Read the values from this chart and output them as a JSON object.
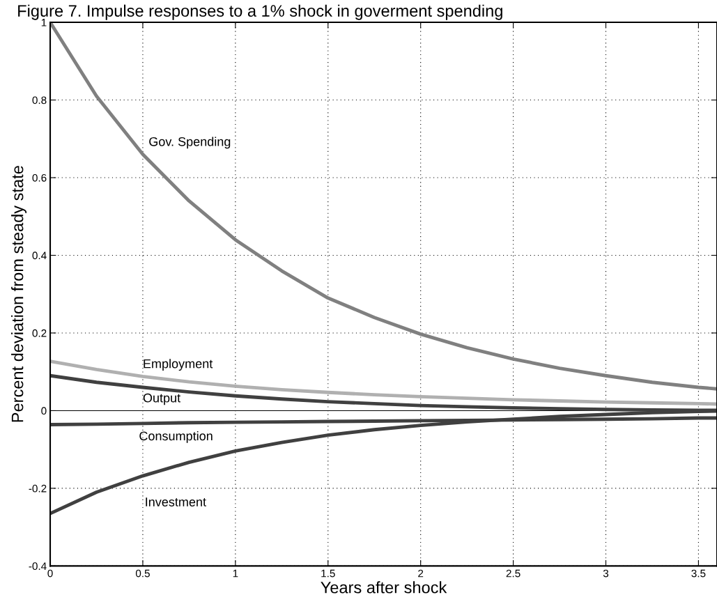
{
  "chart_data": {
    "type": "line",
    "title": "Figure 7. Impulse responses to a 1% shock in goverment spending",
    "xlabel": "Years after shock",
    "ylabel": "Percent deviation from steady state",
    "x": [
      0,
      0.25,
      0.5,
      0.75,
      1,
      1.25,
      1.5,
      1.75,
      2,
      2.25,
      2.5,
      2.75,
      3,
      3.25,
      3.5,
      3.6
    ],
    "series": [
      {
        "name": "Gov. Spending",
        "color": "#808080",
        "values": [
          1,
          0.81,
          0.66,
          0.54,
          0.44,
          0.36,
          0.29,
          0.24,
          0.197,
          0.162,
          0.133,
          0.109,
          0.09,
          0.073,
          0.06,
          0.056
        ]
      },
      {
        "name": "Employment",
        "color": "#b0b0b0",
        "values": [
          0.127,
          0.106,
          0.088,
          0.074,
          0.063,
          0.054,
          0.047,
          0.041,
          0.036,
          0.032,
          0.028,
          0.025,
          0.022,
          0.02,
          0.018,
          0.017
        ]
      },
      {
        "name": "Output",
        "color": "#404040",
        "values": [
          0.09,
          0.073,
          0.06,
          0.048,
          0.038,
          0.03,
          0.023,
          0.018,
          0.013,
          0.01,
          0.007,
          0.005,
          0.003,
          0.002,
          0.001,
          0.001
        ]
      },
      {
        "name": "Consumption",
        "color": "#404040",
        "values": [
          -0.036,
          -0.035,
          -0.033,
          -0.031,
          -0.03,
          -0.029,
          -0.028,
          -0.027,
          -0.026,
          -0.025,
          -0.024,
          -0.023,
          -0.022,
          -0.021,
          -0.019,
          -0.019
        ]
      },
      {
        "name": "Investment",
        "color": "#404040",
        "values": [
          -0.265,
          -0.21,
          -0.168,
          -0.133,
          -0.104,
          -0.082,
          -0.063,
          -0.049,
          -0.038,
          -0.029,
          -0.022,
          -0.015,
          -0.01,
          -0.005,
          -0.002,
          -0.001
        ]
      }
    ],
    "xlim": [
      0,
      3.6
    ],
    "xticks": [
      0,
      0.5,
      1,
      1.5,
      2,
      2.5,
      3,
      3.5
    ],
    "ylim": [
      -0.4,
      1
    ],
    "yticks": [
      -0.4,
      -0.2,
      0,
      0.2,
      0.4,
      0.6,
      0.8,
      1
    ],
    "ref_lines": [
      {
        "axis": "y",
        "value": 0,
        "color": "#000000",
        "line_style": "solid"
      }
    ],
    "grid": true,
    "line_style": "solid",
    "marker": "none",
    "legend": false
  }
}
